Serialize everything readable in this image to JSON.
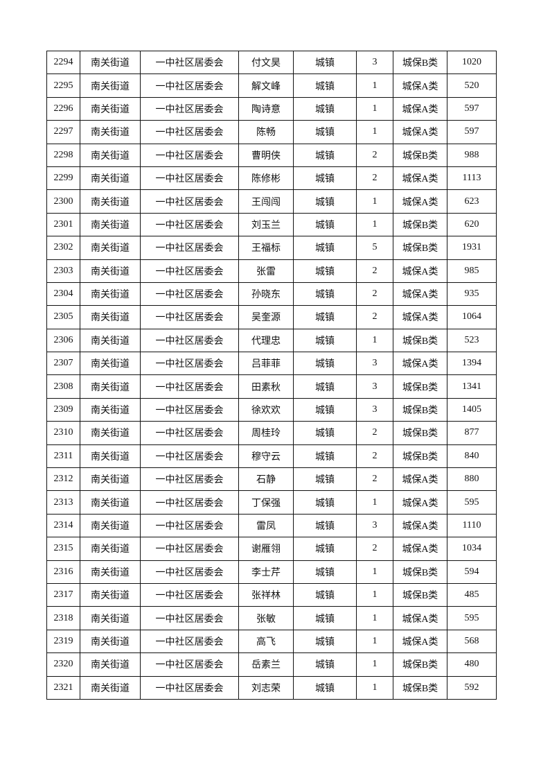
{
  "table": {
    "rows": [
      [
        "2294",
        "南关街道",
        "一中社区居委会",
        "付文昊",
        "城镇",
        "3",
        "城保B类",
        "1020"
      ],
      [
        "2295",
        "南关街道",
        "一中社区居委会",
        "解文峰",
        "城镇",
        "1",
        "城保A类",
        "520"
      ],
      [
        "2296",
        "南关街道",
        "一中社区居委会",
        "陶诗意",
        "城镇",
        "1",
        "城保A类",
        "597"
      ],
      [
        "2297",
        "南关街道",
        "一中社区居委会",
        "陈畅",
        "城镇",
        "1",
        "城保A类",
        "597"
      ],
      [
        "2298",
        "南关街道",
        "一中社区居委会",
        "曹明侠",
        "城镇",
        "2",
        "城保B类",
        "988"
      ],
      [
        "2299",
        "南关街道",
        "一中社区居委会",
        "陈修彬",
        "城镇",
        "2",
        "城保A类",
        "1113"
      ],
      [
        "2300",
        "南关街道",
        "一中社区居委会",
        "王闯闯",
        "城镇",
        "1",
        "城保A类",
        "623"
      ],
      [
        "2301",
        "南关街道",
        "一中社区居委会",
        "刘玉兰",
        "城镇",
        "1",
        "城保B类",
        "620"
      ],
      [
        "2302",
        "南关街道",
        "一中社区居委会",
        "王福标",
        "城镇",
        "5",
        "城保B类",
        "1931"
      ],
      [
        "2303",
        "南关街道",
        "一中社区居委会",
        "张雷",
        "城镇",
        "2",
        "城保A类",
        "985"
      ],
      [
        "2304",
        "南关街道",
        "一中社区居委会",
        "孙晓东",
        "城镇",
        "2",
        "城保A类",
        "935"
      ],
      [
        "2305",
        "南关街道",
        "一中社区居委会",
        "吴奎源",
        "城镇",
        "2",
        "城保A类",
        "1064"
      ],
      [
        "2306",
        "南关街道",
        "一中社区居委会",
        "代理忠",
        "城镇",
        "1",
        "城保B类",
        "523"
      ],
      [
        "2307",
        "南关街道",
        "一中社区居委会",
        "吕菲菲",
        "城镇",
        "3",
        "城保A类",
        "1394"
      ],
      [
        "2308",
        "南关街道",
        "一中社区居委会",
        "田素秋",
        "城镇",
        "3",
        "城保B类",
        "1341"
      ],
      [
        "2309",
        "南关街道",
        "一中社区居委会",
        "徐欢欢",
        "城镇",
        "3",
        "城保B类",
        "1405"
      ],
      [
        "2310",
        "南关街道",
        "一中社区居委会",
        "周桂玲",
        "城镇",
        "2",
        "城保B类",
        "877"
      ],
      [
        "2311",
        "南关街道",
        "一中社区居委会",
        "穆守云",
        "城镇",
        "2",
        "城保B类",
        "840"
      ],
      [
        "2312",
        "南关街道",
        "一中社区居委会",
        "石静",
        "城镇",
        "2",
        "城保A类",
        "880"
      ],
      [
        "2313",
        "南关街道",
        "一中社区居委会",
        "丁保强",
        "城镇",
        "1",
        "城保A类",
        "595"
      ],
      [
        "2314",
        "南关街道",
        "一中社区居委会",
        "雷凤",
        "城镇",
        "3",
        "城保A类",
        "1110"
      ],
      [
        "2315",
        "南关街道",
        "一中社区居委会",
        "谢雁翎",
        "城镇",
        "2",
        "城保A类",
        "1034"
      ],
      [
        "2316",
        "南关街道",
        "一中社区居委会",
        "李士芹",
        "城镇",
        "1",
        "城保B类",
        "594"
      ],
      [
        "2317",
        "南关街道",
        "一中社区居委会",
        "张祥林",
        "城镇",
        "1",
        "城保B类",
        "485"
      ],
      [
        "2318",
        "南关街道",
        "一中社区居委会",
        "张敏",
        "城镇",
        "1",
        "城保A类",
        "595"
      ],
      [
        "2319",
        "南关街道",
        "一中社区居委会",
        "高飞",
        "城镇",
        "1",
        "城保A类",
        "568"
      ],
      [
        "2320",
        "南关街道",
        "一中社区居委会",
        "岳素兰",
        "城镇",
        "1",
        "城保B类",
        "480"
      ],
      [
        "2321",
        "南关街道",
        "一中社区居委会",
        "刘志荣",
        "城镇",
        "1",
        "城保B类",
        "592"
      ]
    ]
  }
}
